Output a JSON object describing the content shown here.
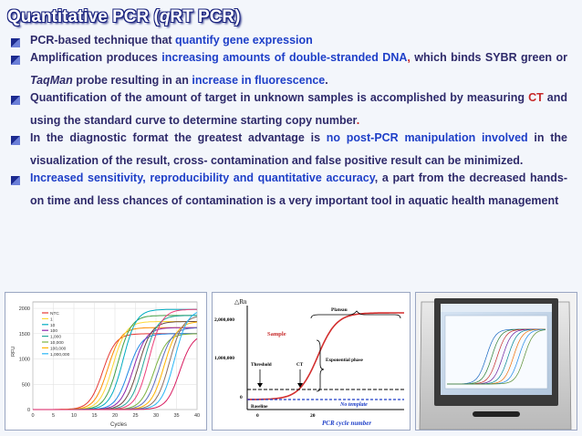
{
  "title": {
    "pre": "Quantitative PCR (",
    "ital": "q",
    "post": "RT PCR)"
  },
  "bullets": [
    {
      "segs": [
        {
          "t": "PCR-based technique that ",
          "c": ""
        },
        {
          "t": "quantify gene expression",
          "c": "blue"
        }
      ]
    },
    {
      "segs": [
        {
          "t": " Amplification produces ",
          "c": ""
        },
        {
          "t": "increasing amounts of double-stranded DNA",
          "c": "blue"
        },
        {
          "t": ", ",
          "c": "red"
        },
        {
          "t": "which binds SYBR green or ",
          "c": ""
        },
        {
          "t": "TaqMan",
          "c": "it"
        },
        {
          "t": " probe resulting in an ",
          "c": ""
        },
        {
          "t": "increase in fluorescence",
          "c": "blue"
        },
        {
          "t": ".",
          "c": ""
        }
      ]
    },
    {
      "segs": [
        {
          "t": "Quantification of the amount of target in unknown samples is accomplished by measuring ",
          "c": ""
        },
        {
          "t": "CT",
          "c": "red"
        },
        {
          "t": " and using the standard curve to determine starting copy number",
          "c": ""
        },
        {
          "t": ".",
          "c": "red"
        }
      ]
    },
    {
      "segs": [
        {
          "t": "In the diagnostic format the greatest advantage is ",
          "c": ""
        },
        {
          "t": "no post-PCR manipulation involved",
          "c": "blue"
        },
        {
          "t": " in the visualization of the result, cross- contamination and false positive result can be minimized.",
          "c": ""
        }
      ]
    },
    {
      "segs": [
        {
          "t": "Increased sensitivity, reproducibility and quantitative accuracy",
          "c": "blue"
        },
        {
          "t": ", a part from the decreased hands-on time and less chances of contamination is a very important tool in aquatic health management",
          "c": ""
        }
      ]
    }
  ],
  "chart1": {
    "ylabel": "RFU",
    "xlabel": "Cycles",
    "yticks": [
      "0",
      "500",
      "1000",
      "1500",
      "2000"
    ],
    "xticks": [
      "0",
      "5",
      "10",
      "15",
      "20",
      "25",
      "30",
      "35",
      "40"
    ],
    "legend": [
      "NTC",
      "1",
      "10",
      "100",
      "1,000",
      "10,000",
      "100,000",
      "1,000,000"
    ]
  },
  "chart2": {
    "ylabel": "△Rn",
    "yticks": [
      "2,000,000",
      "1,000,000",
      "0"
    ],
    "xticks": [
      "0",
      "20"
    ],
    "xlabel": "PCR cycle number",
    "plateau": "Plateau",
    "sample": "Sample",
    "phase": "Exponential phase",
    "threshold": "Threshold",
    "ct": "CT",
    "baseline": "Baseline",
    "notemplate": "No template"
  },
  "device": {
    "screen": "RT PCR instrument screen"
  }
}
